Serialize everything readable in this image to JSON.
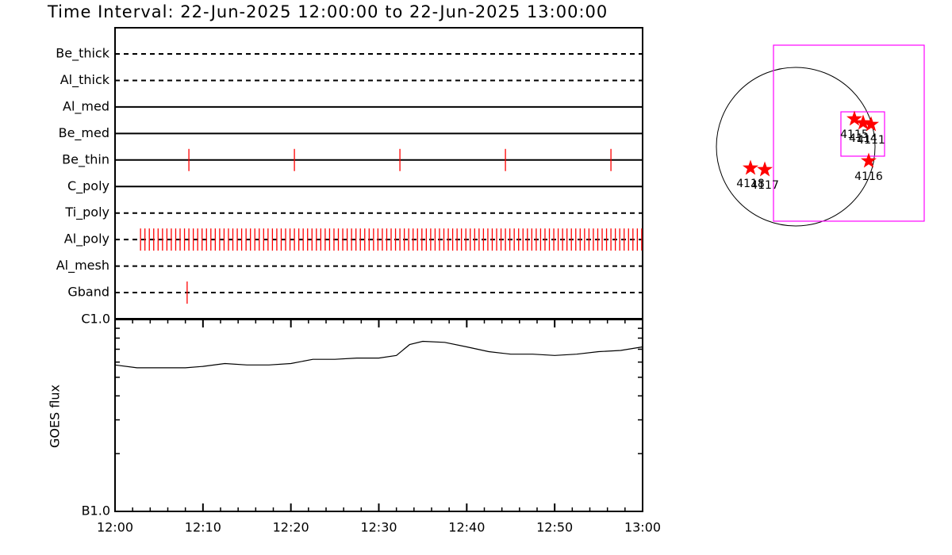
{
  "chart_data": [
    {
      "type": "timeline",
      "title": "Time Interval: 22-Jun-2025 12:00:00 to 22-Jun-2025 13:00:00",
      "xlim": [
        0,
        60
      ],
      "color": "#ff0000",
      "rows": [
        {
          "name": "Be_thick",
          "style": "dashed",
          "events": []
        },
        {
          "name": "Al_thick",
          "style": "dashed",
          "events": []
        },
        {
          "name": "Al_med",
          "style": "solid",
          "events": []
        },
        {
          "name": "Be_med",
          "style": "solid",
          "events": []
        },
        {
          "name": "Be_thin",
          "style": "solid",
          "events": [
            8.4,
            20.4,
            32.4,
            44.4,
            56.4
          ]
        },
        {
          "name": "C_poly",
          "style": "solid",
          "events": []
        },
        {
          "name": "Ti_poly",
          "style": "dashed",
          "events": []
        },
        {
          "name": "Al_poly",
          "style": "dashed",
          "events": [
            2.9,
            3.4,
            3.9,
            4.4,
            4.9,
            5.4,
            5.9,
            6.4,
            6.9,
            7.4,
            7.9,
            8.4,
            8.9,
            9.4,
            9.9,
            10.4,
            10.9,
            11.4,
            11.9,
            12.4,
            12.9,
            13.4,
            13.9,
            14.4,
            14.9,
            15.4,
            15.9,
            16.4,
            16.9,
            17.4,
            17.9,
            18.4,
            18.9,
            19.4,
            19.9,
            20.4,
            20.9,
            21.4,
            21.9,
            22.4,
            22.9,
            23.4,
            23.9,
            24.4,
            24.9,
            25.4,
            25.9,
            26.4,
            26.9,
            27.4,
            27.9,
            28.4,
            28.9,
            29.4,
            29.9,
            30.4,
            30.9,
            31.4,
            31.9,
            32.4,
            32.9,
            33.4,
            33.9,
            34.4,
            34.9,
            35.4,
            35.9,
            36.4,
            36.9,
            37.4,
            37.9,
            38.4,
            38.9,
            39.4,
            39.9,
            40.4,
            40.9,
            41.4,
            41.9,
            42.4,
            42.9,
            43.4,
            43.9,
            44.4,
            44.9,
            45.4,
            45.9,
            46.4,
            46.9,
            47.4,
            47.9,
            48.4,
            48.9,
            49.4,
            49.9,
            50.4,
            50.9,
            51.4,
            51.9,
            52.4,
            52.9,
            53.4,
            53.9,
            54.4,
            54.9,
            55.4,
            55.9,
            56.4,
            56.9,
            57.4,
            57.9,
            58.4,
            58.9,
            59.4,
            59.9
          ]
        },
        {
          "name": "Al_mesh",
          "style": "dashed",
          "events": []
        },
        {
          "name": "Gband",
          "style": "dashed",
          "events": [
            8.2
          ]
        }
      ]
    },
    {
      "type": "line",
      "y_label": "GOES flux",
      "log_scale": true,
      "color": "#000000",
      "xlim": [
        0,
        60
      ],
      "xticks": [
        {
          "value": 0,
          "label": "12:00"
        },
        {
          "value": 10,
          "label": "12:10"
        },
        {
          "value": 20,
          "label": "12:20"
        },
        {
          "value": 30,
          "label": "12:30"
        },
        {
          "value": 40,
          "label": "12:40"
        },
        {
          "value": 50,
          "label": "12:50"
        },
        {
          "value": 60,
          "label": "13:00"
        }
      ],
      "minor_xticks": [
        2,
        4,
        6,
        8,
        12,
        14,
        16,
        18,
        22,
        24,
        26,
        28,
        32,
        34,
        36,
        38,
        42,
        44,
        46,
        48,
        52,
        54,
        56,
        58
      ],
      "ylim": [
        1e-07,
        1e-06
      ],
      "yticks": [
        {
          "value": 1e-07,
          "label": "B1.0"
        },
        {
          "value": 1e-06,
          "label": "C1.0"
        }
      ],
      "minor_yticks": [
        2e-07,
        3e-07,
        4e-07,
        5e-07,
        6e-07,
        7e-07,
        8e-07,
        9e-07
      ],
      "x": [
        0,
        2.5,
        5,
        8,
        10,
        12.5,
        15,
        17.5,
        20,
        22.5,
        25,
        27.5,
        30,
        32,
        33.5,
        35,
        37.5,
        40,
        42.5,
        45,
        47.5,
        50,
        52.5,
        55,
        57.5,
        60
      ],
      "values": [
        5.8e-07,
        5.6e-07,
        5.6e-07,
        5.6e-07,
        5.7e-07,
        5.9e-07,
        5.8e-07,
        5.8e-07,
        5.9e-07,
        6.2e-07,
        6.2e-07,
        6.3e-07,
        6.3e-07,
        6.5e-07,
        7.4e-07,
        7.7e-07,
        7.6e-07,
        7.2e-07,
        6.8e-07,
        6.6e-07,
        6.6e-07,
        6.5e-07,
        6.6e-07,
        6.8e-07,
        6.9e-07,
        7.2e-07
      ]
    },
    {
      "type": "map",
      "solar_radius": 960,
      "box_color": "#ff00ff",
      "star_color": "#ff0000",
      "boxes": [
        {
          "x": [
            -269,
            1555
          ],
          "y": [
            -902,
            1229
          ]
        },
        {
          "x": [
            547,
            1075
          ],
          "y": [
            -115,
            422
          ]
        }
      ],
      "regions": [
        {
          "label": "4115",
          "x": 710,
          "y": 336
        },
        {
          "label": "4114",
          "x": 816,
          "y": 288
        },
        {
          "label": "4111",
          "x": 912,
          "y": 269
        },
        {
          "label": "4116",
          "x": 883,
          "y": -173
        },
        {
          "label": "4118",
          "x": -547,
          "y": -259
        },
        {
          "label": "4117",
          "x": -374,
          "y": -278
        }
      ]
    }
  ]
}
